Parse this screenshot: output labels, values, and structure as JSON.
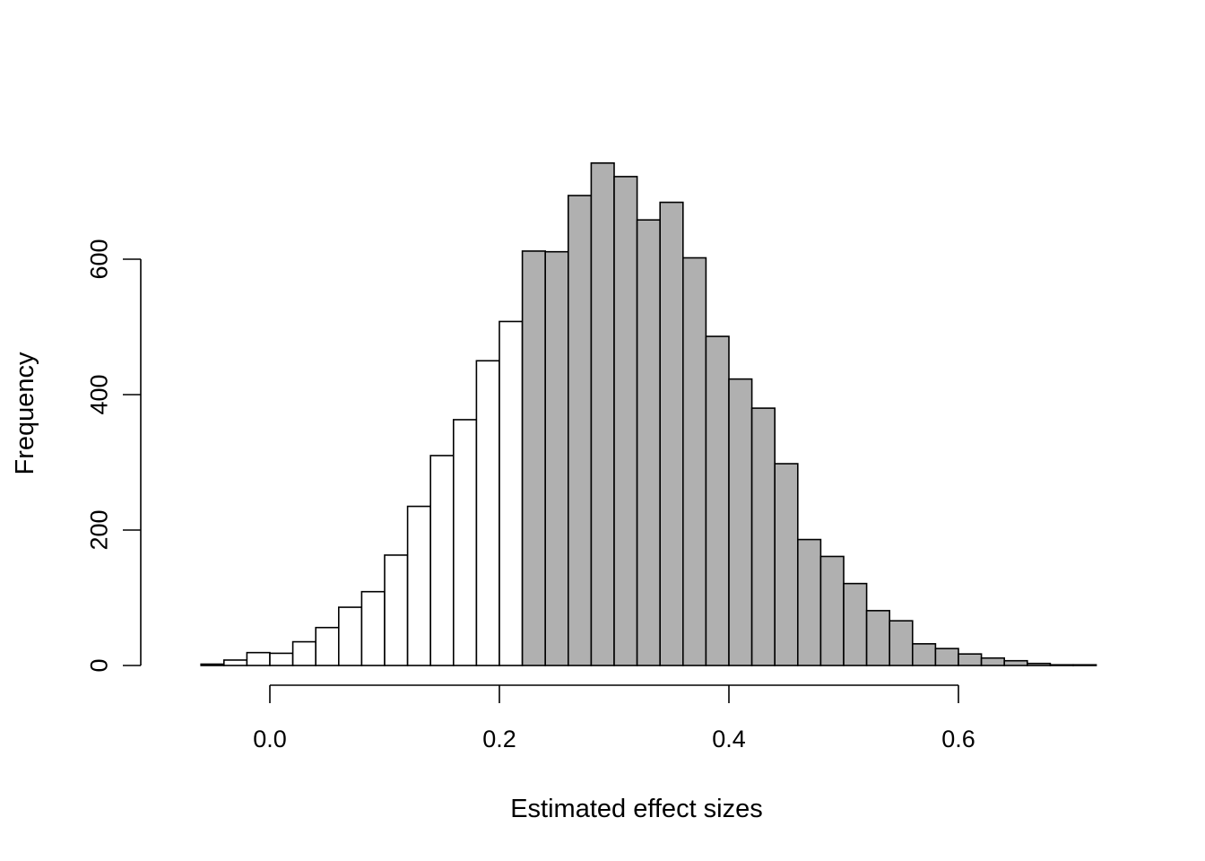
{
  "chart_data": {
    "type": "bar",
    "subtype": "histogram",
    "title": "",
    "xlabel": "Estimated effect sizes",
    "ylabel": "Frequency",
    "bin_width": 0.02,
    "bin_start": -0.08,
    "values": [
      0,
      2,
      8,
      19,
      18,
      35,
      56,
      86,
      109,
      163,
      235,
      310,
      363,
      450,
      508,
      612,
      611,
      694,
      742,
      722,
      658,
      684,
      602,
      486,
      423,
      380,
      298,
      186,
      161,
      121,
      81,
      66,
      32,
      25,
      17,
      11,
      7,
      3,
      1,
      1
    ],
    "highlight_from_x": 0.22,
    "colors": {
      "normal": "#ffffff",
      "highlight": "#b0b0b0"
    },
    "xticks": [
      0.0,
      0.2,
      0.4,
      0.6
    ],
    "xtick_labels": [
      "0.0",
      "0.2",
      "0.4",
      "0.6"
    ],
    "yticks": [
      0,
      200,
      400,
      600
    ],
    "ytick_labels": [
      "0",
      "200",
      "400",
      "600"
    ],
    "xlim": [
      -0.08,
      0.72
    ],
    "ylim": [
      0,
      600
    ],
    "grid": false,
    "legend": "none"
  }
}
